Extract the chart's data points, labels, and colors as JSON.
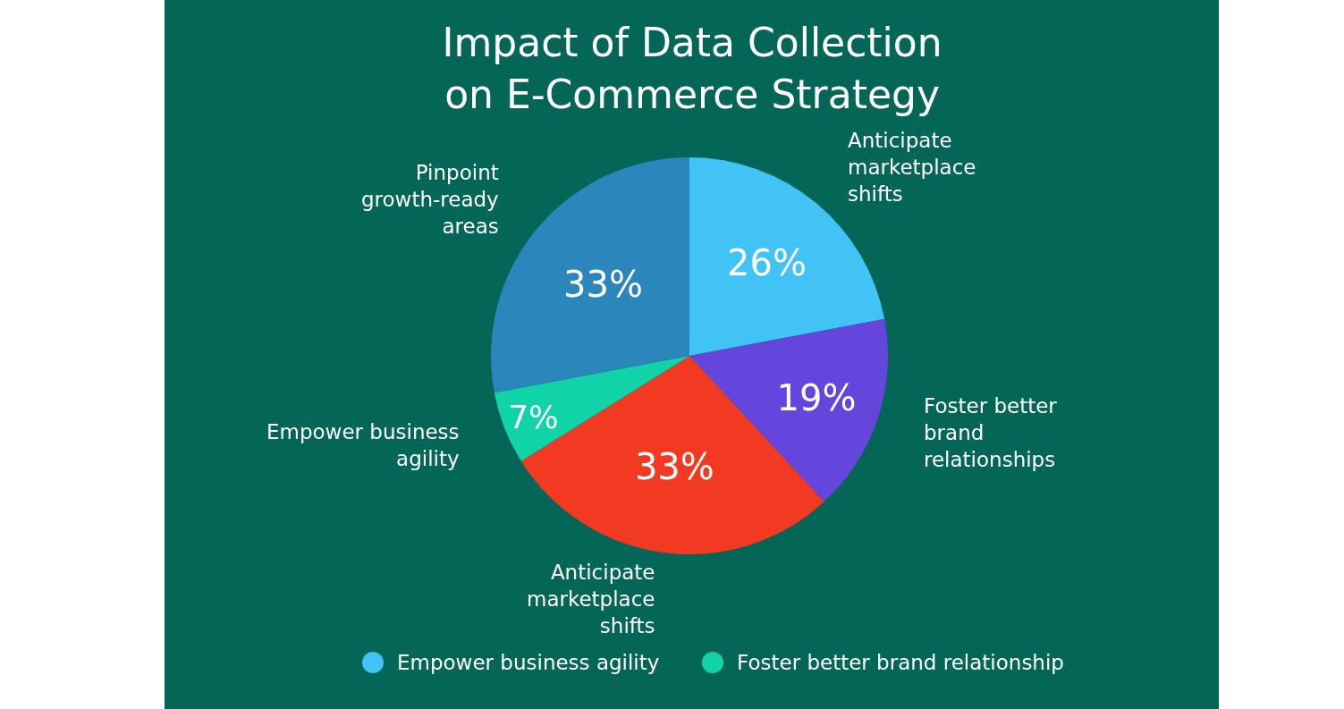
{
  "chart_data": {
    "type": "pie",
    "title": "Impact of Data Collection\non E-Commerce Strategy",
    "categories": [
      "Anticipate marketplace shifts",
      "Foster better brand relationships",
      "Anticipate marketplace shifts",
      "Empower business agility",
      "Pinpoint growth-ready areas"
    ],
    "values": [
      26,
      19,
      33,
      7,
      33
    ],
    "value_labels": [
      "26%",
      "19%",
      "33%",
      "7%",
      "33%"
    ],
    "colors": [
      "#42c3f5",
      "#6546dc",
      "#f23a22",
      "#10d4a8",
      "#2b86bb"
    ],
    "annotations": [
      "Empower business agility",
      "Foster better brand relationship"
    ]
  }
}
